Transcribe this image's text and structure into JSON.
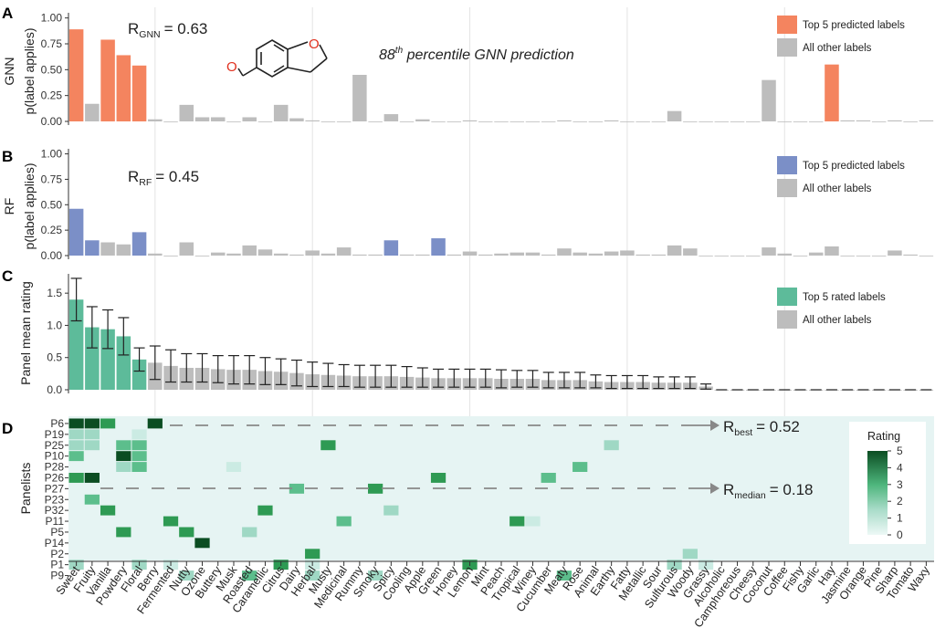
{
  "labels": [
    "Sweet",
    "Fruity",
    "Vanilla",
    "Powdery",
    "Floral",
    "Berry",
    "Fermented",
    "Nutty",
    "Ozone",
    "Buttery",
    "Musk",
    "Roasted",
    "Caramellic",
    "Citrus",
    "Dairy",
    "Herbal",
    "Musty",
    "Medicinal",
    "Rummy",
    "Smoky",
    "Spicy",
    "Cooling",
    "Apple",
    "Green",
    "Honey",
    "Lemon",
    "Mint",
    "Peach",
    "Tropical",
    "Winey",
    "Cucumber",
    "Meaty",
    "Rose",
    "Animal",
    "Earthy",
    "Fatty",
    "Metallic",
    "Sour",
    "Sulfurous",
    "Woody",
    "Grassy",
    "Alcoholic",
    "Camphoreous",
    "Cheesy",
    "Coconut",
    "Coffee",
    "Fishy",
    "Garlic",
    "Hay",
    "Jasmine",
    "Orange",
    "Pine",
    "Sharp",
    "Tomato",
    "Waxy"
  ],
  "panelA": {
    "letter": "A",
    "row_label": "GNN",
    "ylabel": "p(label applies)",
    "stat": {
      "R": "R",
      "sub": "GNN",
      "value": "= 0.63"
    },
    "note": {
      "prefix": "88",
      "sup": "th",
      "rest": " percentile GNN prediction"
    },
    "legend": [
      {
        "label": "Top 5 predicted labels",
        "color": "#F4845F"
      },
      {
        "label": "All other labels",
        "color": "#BDBDBD"
      }
    ],
    "yticks": [
      "0.00",
      "0.25",
      "0.50",
      "0.75",
      "1.00"
    ]
  },
  "panelB": {
    "letter": "B",
    "row_label": "RF",
    "ylabel": "p(label applies)",
    "stat": {
      "R": "R",
      "sub": "RF",
      "value": "= 0.45"
    },
    "legend": [
      {
        "label": "Top 5 predicted labels",
        "color": "#7B8FC7"
      },
      {
        "label": "All other labels",
        "color": "#BDBDBD"
      }
    ],
    "yticks": [
      "0.00",
      "0.25",
      "0.50",
      "0.75",
      "1.00"
    ]
  },
  "panelC": {
    "letter": "C",
    "ylabel": "Panel mean rating",
    "legend": [
      {
        "label": "Top 5 rated labels",
        "color": "#5DBB9A"
      },
      {
        "label": "All other labels",
        "color": "#BDBDBD"
      }
    ],
    "yticks": [
      "0.0",
      "0.5",
      "1.0",
      "1.5"
    ]
  },
  "panelD": {
    "letter": "D",
    "ylabel": "Panelists",
    "panelists": [
      "P6",
      "P19",
      "P25",
      "P10",
      "P28",
      "P26",
      "P27",
      "P23",
      "P32",
      "P11",
      "P5",
      "P14",
      "P2",
      "P1",
      "P9"
    ],
    "best": {
      "R": "R",
      "sub": "best",
      "value": "= 0.52"
    },
    "median": {
      "R": "R",
      "sub": "median",
      "value": "= 0.18"
    },
    "legend_title": "Rating",
    "legend_ticks": [
      "0",
      "1",
      "2",
      "3",
      "4",
      "5"
    ]
  },
  "chart_data": [
    {
      "type": "bar",
      "panel": "A",
      "ylabel": "p(label applies)",
      "ylim": [
        0,
        1.05
      ],
      "series": [
        {
          "name": "Top 5 predicted labels",
          "color": "#F4845F",
          "highlight_labels": [
            "Sweet",
            "Vanilla",
            "Powdery",
            "Floral",
            "Hay"
          ]
        },
        {
          "name": "All other labels",
          "color": "#BDBDBD"
        }
      ],
      "values": [
        0.89,
        0.17,
        0.79,
        0.64,
        0.54,
        0.02,
        0,
        0.16,
        0.04,
        0.04,
        0,
        0.04,
        0,
        0.16,
        0.03,
        0.01,
        0,
        0,
        0.45,
        0,
        0.07,
        0,
        0.02,
        0,
        0,
        0.01,
        0,
        0,
        0,
        0,
        0,
        0.01,
        0,
        0,
        0.01,
        0,
        0,
        0,
        0.1,
        0,
        0,
        0,
        0,
        0,
        0.4,
        0,
        0,
        0,
        0.55,
        0.01,
        0.01,
        0,
        0.01,
        0,
        0.01
      ]
    },
    {
      "type": "bar",
      "panel": "B",
      "ylabel": "p(label applies)",
      "ylim": [
        0,
        1.05
      ],
      "series": [
        {
          "name": "Top 5 predicted labels",
          "color": "#7B8FC7",
          "highlight_labels": [
            "Sweet",
            "Fruity",
            "Floral",
            "Spicy",
            "Green"
          ]
        },
        {
          "name": "All other labels",
          "color": "#BDBDBD"
        }
      ],
      "values": [
        0.46,
        0.15,
        0.13,
        0.11,
        0.23,
        0.02,
        0,
        0.13,
        0,
        0.03,
        0.02,
        0.1,
        0.06,
        0.02,
        0.01,
        0.05,
        0.02,
        0.08,
        0.01,
        0.01,
        0.15,
        0.01,
        0.01,
        0.17,
        0.01,
        0.04,
        0.01,
        0.02,
        0.03,
        0.03,
        0.01,
        0.07,
        0.03,
        0.02,
        0.04,
        0.05,
        0.01,
        0.01,
        0.1,
        0.07,
        0,
        0,
        0,
        0,
        0.08,
        0.02,
        0,
        0.03,
        0.09,
        0,
        0,
        0,
        0.05,
        0.01,
        0
      ]
    },
    {
      "type": "bar",
      "panel": "C",
      "ylabel": "Panel mean rating",
      "ylim": [
        0,
        1.8
      ],
      "series": [
        {
          "name": "Top 5 rated labels",
          "color": "#5DBB9A",
          "highlight_labels": [
            "Sweet",
            "Fruity",
            "Vanilla",
            "Powdery",
            "Floral"
          ]
        },
        {
          "name": "All other labels",
          "color": "#BDBDBD"
        }
      ],
      "values": [
        1.4,
        0.97,
        0.94,
        0.83,
        0.47,
        0.42,
        0.37,
        0.34,
        0.34,
        0.32,
        0.31,
        0.31,
        0.29,
        0.28,
        0.26,
        0.24,
        0.23,
        0.22,
        0.21,
        0.21,
        0.21,
        0.2,
        0.19,
        0.18,
        0.18,
        0.18,
        0.18,
        0.17,
        0.17,
        0.17,
        0.15,
        0.15,
        0.15,
        0.13,
        0.12,
        0.12,
        0.12,
        0.11,
        0.11,
        0.11,
        0.05,
        0,
        0,
        0,
        0,
        0,
        0,
        0,
        0,
        0,
        0,
        0,
        0,
        0,
        0
      ],
      "errors": [
        0.33,
        0.32,
        0.3,
        0.29,
        0.18,
        0.26,
        0.25,
        0.22,
        0.22,
        0.21,
        0.22,
        0.22,
        0.21,
        0.2,
        0.2,
        0.19,
        0.18,
        0.17,
        0.17,
        0.17,
        0.17,
        0.16,
        0.15,
        0.14,
        0.14,
        0.14,
        0.14,
        0.14,
        0.13,
        0.13,
        0.12,
        0.12,
        0.12,
        0.1,
        0.1,
        0.1,
        0.1,
        0.09,
        0.09,
        0.09,
        0.04,
        0,
        0,
        0,
        0,
        0,
        0,
        0,
        0,
        0,
        0,
        0,
        0,
        0,
        0
      ]
    },
    {
      "type": "heatmap",
      "panel": "D",
      "rating_range": [
        0,
        5
      ],
      "cells": [
        [
          "P6",
          "Sweet",
          5
        ],
        [
          "P6",
          "Fruity",
          5
        ],
        [
          "P6",
          "Vanilla",
          4
        ],
        [
          "P6",
          "Berry",
          5
        ],
        [
          "P19",
          "Sweet",
          2
        ],
        [
          "P19",
          "Fruity",
          2
        ],
        [
          "P19",
          "Floral",
          1
        ],
        [
          "P25",
          "Sweet",
          2
        ],
        [
          "P25",
          "Fruity",
          2
        ],
        [
          "P25",
          "Powdery",
          3
        ],
        [
          "P25",
          "Floral",
          3
        ],
        [
          "P25",
          "Musty",
          4
        ],
        [
          "P25",
          "Earthy",
          2
        ],
        [
          "P10",
          "Sweet",
          3
        ],
        [
          "P10",
          "Powdery",
          5
        ],
        [
          "P10",
          "Floral",
          3
        ],
        [
          "P28",
          "Powdery",
          2
        ],
        [
          "P28",
          "Floral",
          3
        ],
        [
          "P28",
          "Musk",
          1
        ],
        [
          "P28",
          "Rose",
          3
        ],
        [
          "P26",
          "Sweet",
          4
        ],
        [
          "P26",
          "Fruity",
          5
        ],
        [
          "P26",
          "Green",
          4
        ],
        [
          "P26",
          "Cucumber",
          3
        ],
        [
          "P27",
          "Dairy",
          3
        ],
        [
          "P27",
          "Smoky",
          4
        ],
        [
          "P23",
          "Fruity",
          3
        ],
        [
          "P32",
          "Vanilla",
          4
        ],
        [
          "P32",
          "Caramellic",
          4
        ],
        [
          "P32",
          "Spicy",
          2
        ],
        [
          "P11",
          "Fermented",
          4
        ],
        [
          "P11",
          "Medicinal",
          3
        ],
        [
          "P11",
          "Tropical",
          4
        ],
        [
          "P11",
          "Winey",
          1
        ],
        [
          "P5",
          "Powdery",
          4
        ],
        [
          "P5",
          "Nutty",
          4
        ],
        [
          "P5",
          "Roasted",
          2
        ],
        [
          "P14",
          "Ozone",
          5
        ],
        [
          "P2",
          "Herbal",
          4
        ],
        [
          "P2",
          "Woody",
          2
        ],
        [
          "P1",
          "Sweet",
          2
        ],
        [
          "P1",
          "Floral",
          2
        ],
        [
          "P1",
          "Fermented",
          1
        ],
        [
          "P1",
          "Citrus",
          4
        ],
        [
          "P1",
          "Herbal",
          1
        ],
        [
          "P1",
          "Lemon",
          4
        ],
        [
          "P1",
          "Sulfurous",
          2
        ],
        [
          "P1",
          "Grassy",
          1
        ],
        [
          "P9",
          "Nutty",
          2
        ],
        [
          "P9",
          "Roasted",
          3
        ],
        [
          "P9",
          "Herbal",
          2
        ],
        [
          "P9",
          "Smoky",
          2
        ],
        [
          "P9",
          "Meaty",
          3
        ]
      ]
    }
  ]
}
